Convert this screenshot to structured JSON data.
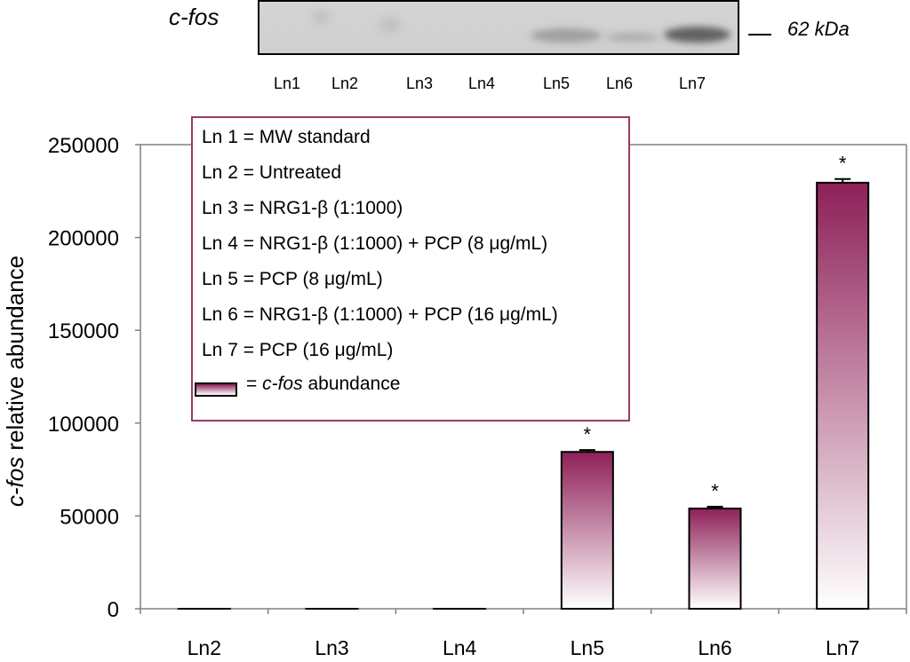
{
  "blot": {
    "label": "c-fos",
    "mw_label": "62 kDa",
    "lanes": [
      "Ln1",
      "Ln2",
      "Ln3",
      "Ln4",
      "Ln5",
      "Ln6",
      "Ln7"
    ]
  },
  "legend": {
    "lines": [
      "Ln 1 = MW standard",
      "Ln 2 = Untreated",
      "Ln 3 = NRG1-β (1:1000)",
      "Ln 4 = NRG1-β (1:1000) + PCP (8 μg/mL)",
      "Ln 5 = PCP (8 μg/mL)",
      "Ln 6 = NRG1-β (1:1000) + PCP (16 μg/mL)",
      "Ln 7 = PCP (16 μg/mL)"
    ],
    "swatch_text_prefix": "= ",
    "swatch_text_italic": "c-fos",
    "swatch_text_suffix": " abundance"
  },
  "colors": {
    "bar_top": "#8e2058",
    "bar_bottom": "#ffffff",
    "legend_border": "#9a3a6a",
    "axis": "#808080"
  },
  "chart_data": {
    "type": "bar",
    "categories": [
      "Ln2",
      "Ln3",
      "Ln4",
      "Ln5",
      "Ln6",
      "Ln7"
    ],
    "values": [
      0,
      0,
      0,
      84500,
      54000,
      229500
    ],
    "errors": [
      0,
      0,
      0,
      1000,
      1000,
      2000
    ],
    "significance": [
      "",
      "",
      "",
      "*",
      "*",
      "*"
    ],
    "ylabel_italic": "c-fos",
    "ylabel_rest": " relative abundance",
    "xlabel": "",
    "ylim": [
      0,
      250000
    ],
    "yticks": [
      "0",
      "50000",
      "100000",
      "150000",
      "200000",
      "250000"
    ],
    "grid": false
  }
}
